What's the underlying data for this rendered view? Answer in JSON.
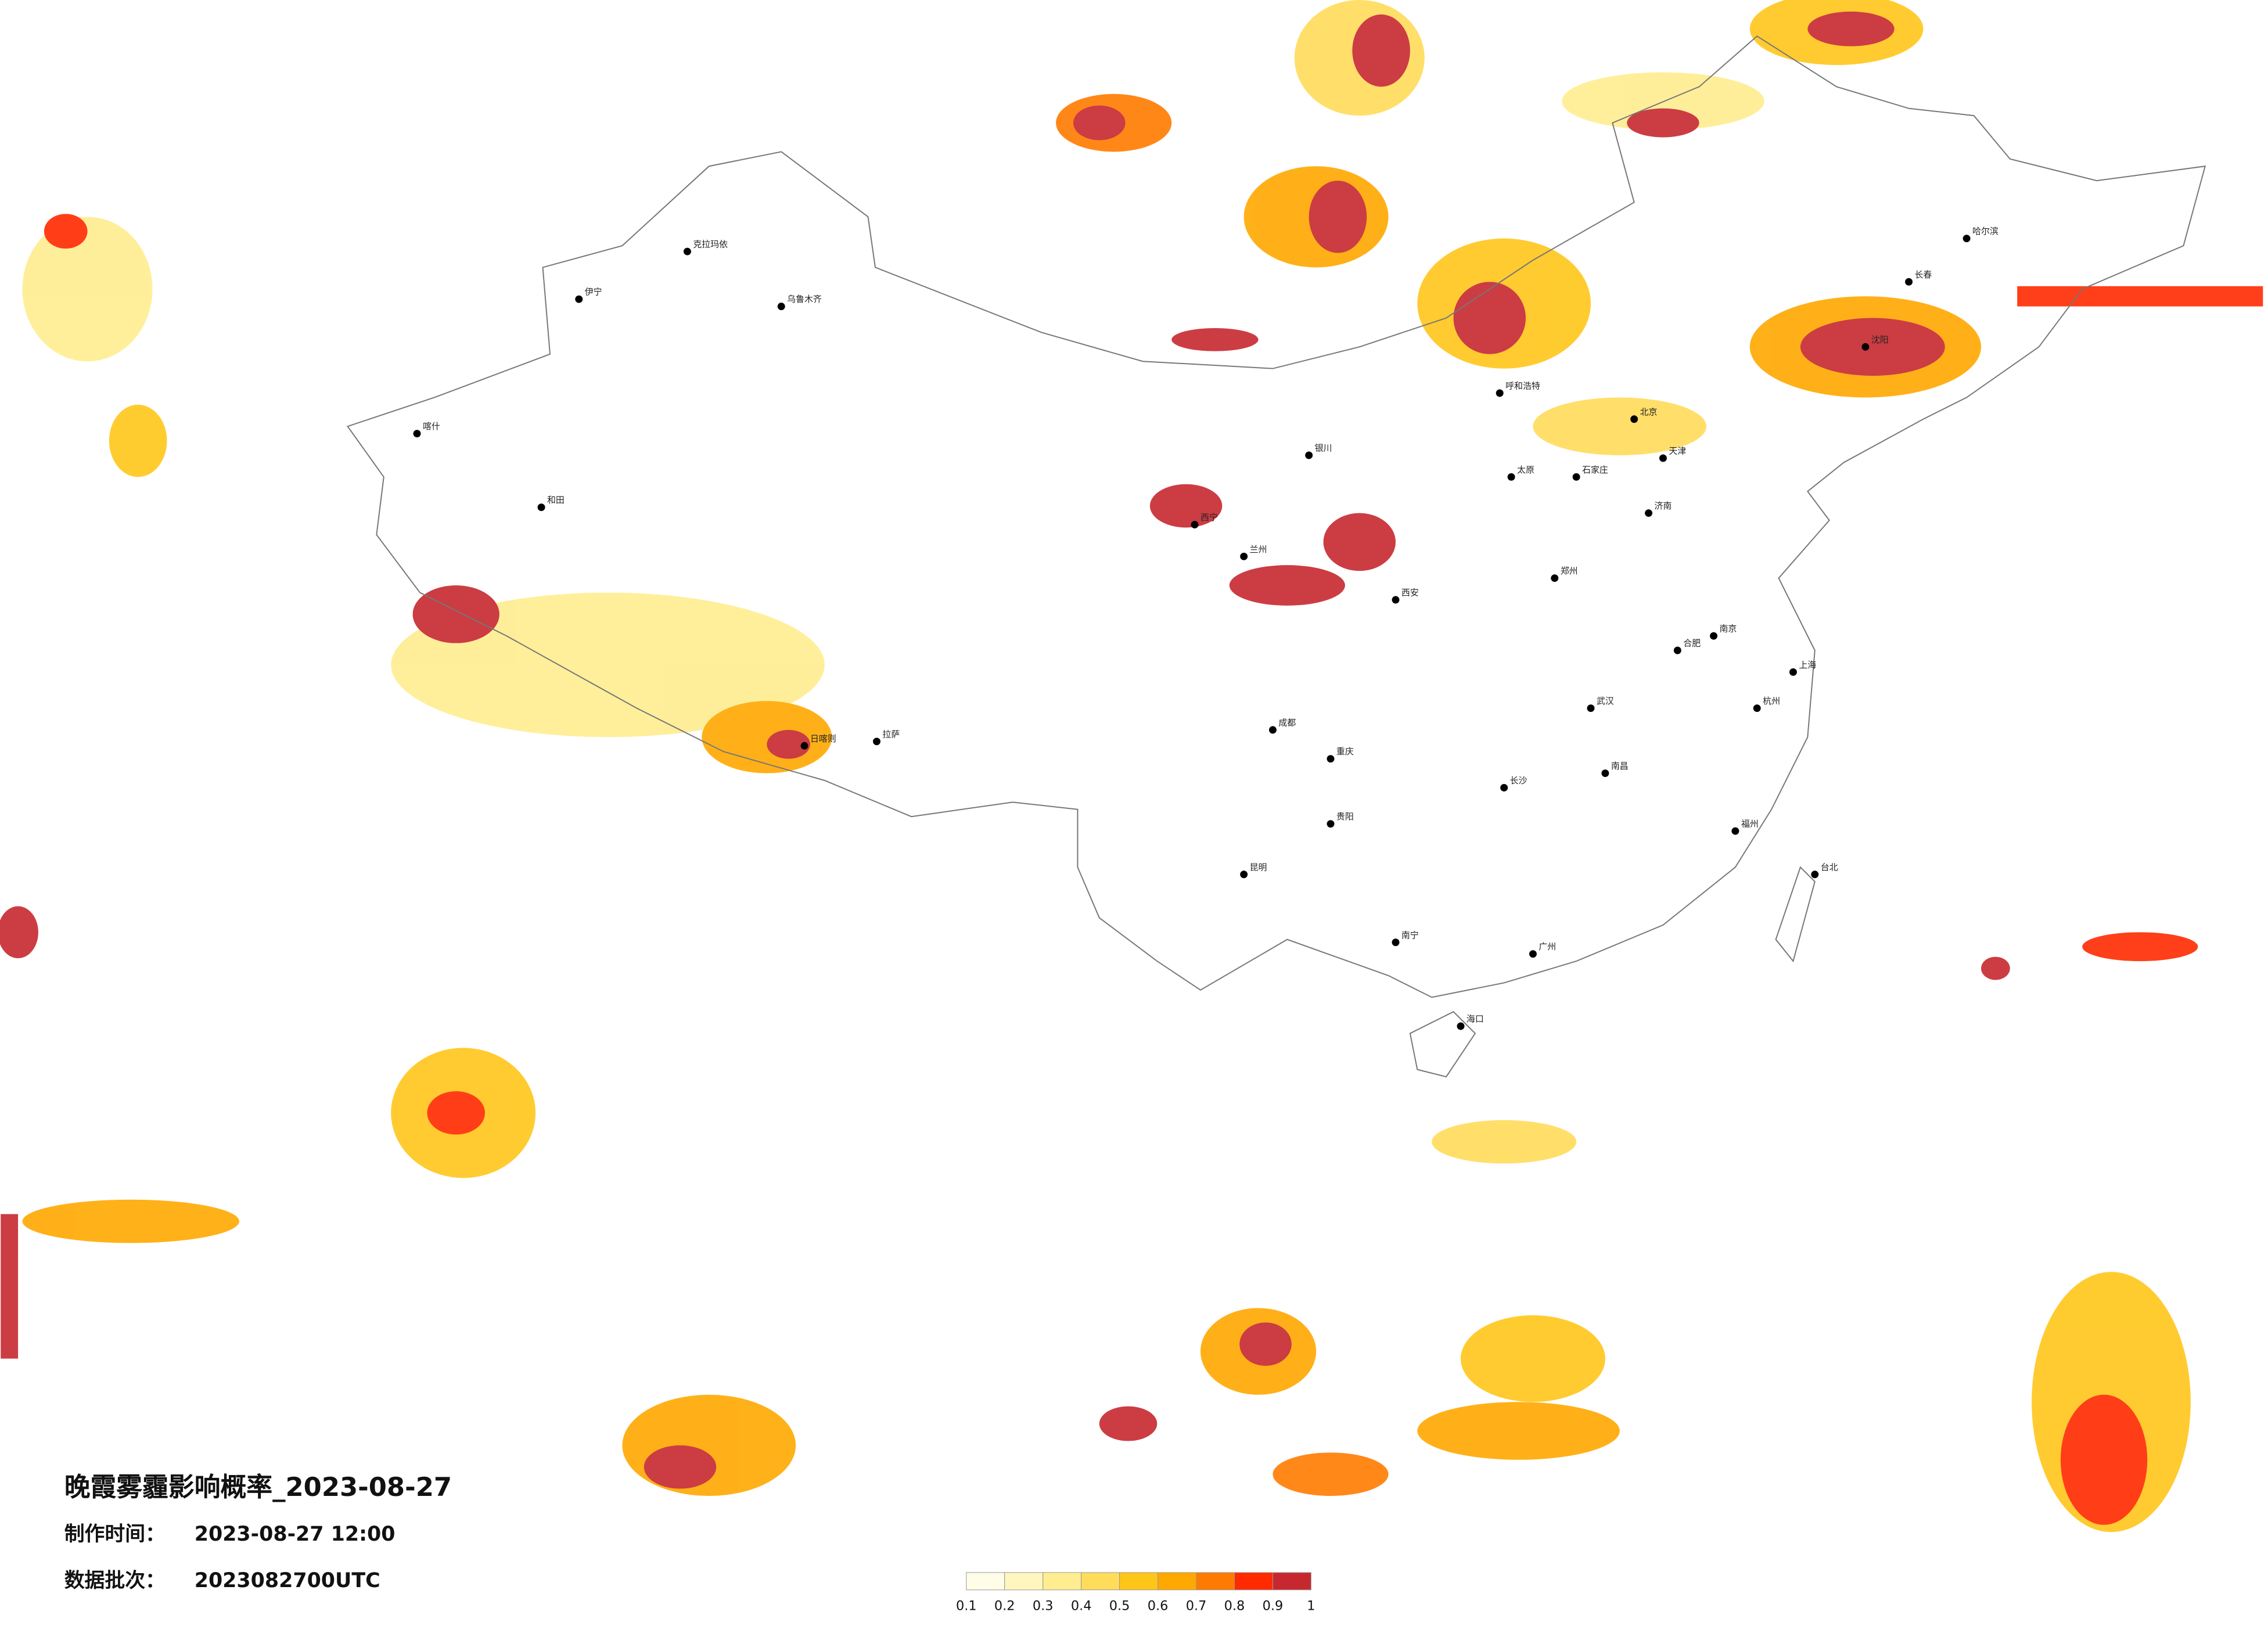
{
  "title": "晚霞雾霾影响概率_2023-08-27",
  "info": [
    {
      "label": "制作时间：",
      "value": "2023-08-27 12:00"
    },
    {
      "label": "数据批次：",
      "value": "2023082700UTC"
    }
  ],
  "legend": {
    "colors": [
      "#fffce8",
      "#fff6bf",
      "#ffed8f",
      "#ffdc5a",
      "#ffc61a",
      "#ffa800",
      "#ff7b00",
      "#ff2a00",
      "#c7282f"
    ],
    "ticks": [
      0.1,
      0.2,
      0.3,
      0.4,
      0.5,
      0.6,
      0.7,
      0.8,
      0.9,
      1
    ]
  },
  "cities": [
    "乌鲁木齐",
    "克拉玛依",
    "伊宁",
    "喀什",
    "和田",
    "拉萨",
    "日喀则",
    "西宁",
    "兰州",
    "银川",
    "呼和浩特",
    "北京",
    "天津",
    "沈阳",
    "长春",
    "哈尔滨",
    "济南",
    "郑州",
    "西安",
    "太原",
    "石家庄",
    "成都",
    "重庆",
    "贵阳",
    "昆明",
    "南宁",
    "广州",
    "长沙",
    "武汉",
    "南京",
    "上海",
    "杭州",
    "福州",
    "南昌",
    "合肥",
    "海口",
    "台北"
  ]
}
